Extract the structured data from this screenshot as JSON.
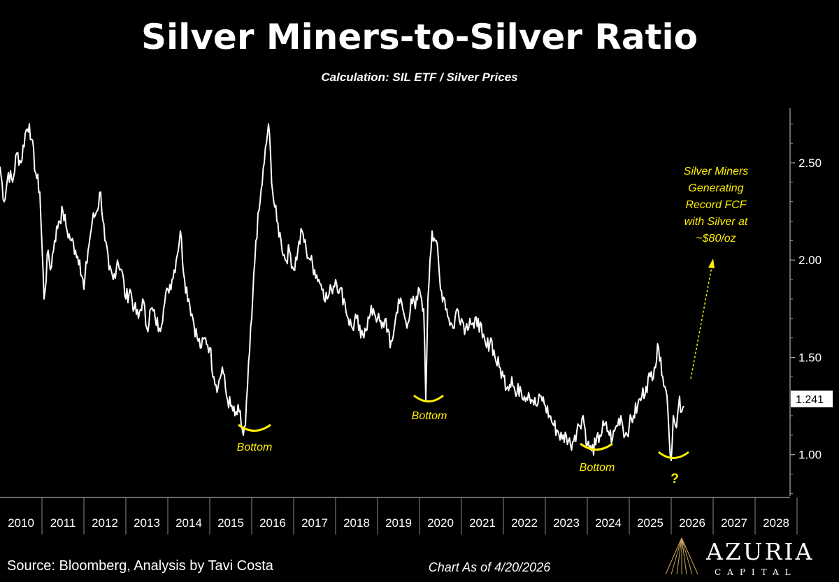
{
  "chart_data": {
    "type": "line",
    "title": "Silver Miners-to-Silver Ratio",
    "subtitle": "Calculation: SIL ETF / Silver Prices",
    "x_ticks": [
      "2010",
      "2011",
      "2012",
      "2013",
      "2014",
      "2015",
      "2016",
      "2017",
      "2018",
      "2019",
      "2020",
      "2021",
      "2022",
      "2023",
      "2024",
      "2025",
      "2026",
      "2027",
      "2028"
    ],
    "xlim": [
      2010.0,
      2029.0
    ],
    "y_ticks": [
      "1.00",
      "1.50",
      "2.00",
      "2.50"
    ],
    "ylim": [
      0.78,
      2.78
    ],
    "last_value_label": "1.241",
    "series": [
      {
        "color": "#ffffff",
        "x": [
          2010.0,
          2010.1,
          2010.2,
          2010.3,
          2010.4,
          2010.5,
          2010.6,
          2010.7,
          2010.75,
          2010.85,
          2010.95,
          2011.05,
          2011.15,
          2011.2,
          2011.3,
          2011.4,
          2011.5,
          2011.6,
          2011.7,
          2011.8,
          2011.9,
          2012.0,
          2012.1,
          2012.2,
          2012.3,
          2012.4,
          2012.5,
          2012.6,
          2012.7,
          2012.8,
          2012.9,
          2013.0,
          2013.1,
          2013.2,
          2013.3,
          2013.4,
          2013.5,
          2013.6,
          2013.7,
          2013.8,
          2013.9,
          2014.0,
          2014.1,
          2014.2,
          2014.3,
          2014.4,
          2014.5,
          2014.6,
          2014.7,
          2014.8,
          2014.9,
          2015.0,
          2015.1,
          2015.2,
          2015.3,
          2015.4,
          2015.5,
          2015.6,
          2015.7,
          2015.8,
          2015.85,
          2015.9,
          2016.0,
          2016.1,
          2016.2,
          2016.3,
          2016.4,
          2016.5,
          2016.6,
          2016.7,
          2016.8,
          2016.9,
          2017.0,
          2017.1,
          2017.2,
          2017.3,
          2017.4,
          2017.5,
          2017.6,
          2017.7,
          2017.8,
          2017.9,
          2018.0,
          2018.1,
          2018.2,
          2018.3,
          2018.4,
          2018.5,
          2018.6,
          2018.7,
          2018.8,
          2018.9,
          2019.0,
          2019.1,
          2019.2,
          2019.3,
          2019.4,
          2019.5,
          2019.6,
          2019.7,
          2019.8,
          2019.9,
          2020.0,
          2020.05,
          2020.1,
          2020.15,
          2020.2,
          2020.25,
          2020.3,
          2020.4,
          2020.5,
          2020.6,
          2020.7,
          2020.8,
          2020.9,
          2021.0,
          2021.1,
          2021.2,
          2021.3,
          2021.4,
          2021.5,
          2021.6,
          2021.7,
          2021.8,
          2021.9,
          2022.0,
          2022.1,
          2022.2,
          2022.3,
          2022.4,
          2022.5,
          2022.6,
          2022.7,
          2022.8,
          2022.9,
          2023.0,
          2023.1,
          2023.2,
          2023.3,
          2023.4,
          2023.5,
          2023.6,
          2023.7,
          2023.8,
          2023.9,
          2024.0,
          2024.1,
          2024.2,
          2024.3,
          2024.4,
          2024.5,
          2024.6,
          2024.7,
          2024.8,
          2024.9,
          2025.0,
          2025.1,
          2025.2,
          2025.3,
          2025.4,
          2025.5,
          2025.6,
          2025.7,
          2025.75,
          2025.8,
          2025.85,
          2025.9,
          2025.95,
          2026.0,
          2026.05,
          2026.1,
          2026.15,
          2026.2,
          2026.25,
          2026.3
        ],
        "y": [
          2.48,
          2.3,
          2.45,
          2.4,
          2.55,
          2.5,
          2.65,
          2.7,
          2.62,
          2.45,
          2.35,
          1.8,
          2.05,
          1.95,
          2.1,
          2.2,
          2.25,
          2.15,
          2.1,
          2.05,
          2.0,
          1.85,
          2.05,
          2.2,
          2.25,
          2.35,
          2.1,
          1.95,
          1.9,
          2.0,
          1.95,
          1.8,
          1.85,
          1.75,
          1.7,
          1.8,
          1.65,
          1.75,
          1.7,
          1.65,
          1.75,
          1.85,
          1.9,
          2.0,
          2.15,
          1.9,
          1.8,
          1.7,
          1.6,
          1.55,
          1.6,
          1.55,
          1.4,
          1.35,
          1.45,
          1.3,
          1.25,
          1.2,
          1.22,
          1.1,
          1.15,
          1.35,
          1.7,
          2.1,
          2.3,
          2.5,
          2.7,
          2.35,
          2.2,
          2.1,
          2.0,
          2.05,
          1.95,
          2.05,
          2.15,
          2.05,
          2.0,
          1.95,
          1.9,
          1.85,
          1.8,
          1.85,
          1.9,
          1.85,
          1.8,
          1.7,
          1.65,
          1.7,
          1.6,
          1.65,
          1.7,
          1.75,
          1.7,
          1.65,
          1.7,
          1.55,
          1.65,
          1.8,
          1.75,
          1.65,
          1.8,
          1.75,
          1.85,
          1.8,
          1.75,
          1.28,
          1.8,
          2.0,
          2.15,
          2.1,
          1.85,
          1.8,
          1.7,
          1.65,
          1.75,
          1.7,
          1.65,
          1.7,
          1.65,
          1.7,
          1.6,
          1.55,
          1.6,
          1.5,
          1.45,
          1.4,
          1.35,
          1.4,
          1.3,
          1.35,
          1.3,
          1.32,
          1.28,
          1.25,
          1.3,
          1.25,
          1.2,
          1.15,
          1.12,
          1.08,
          1.1,
          1.05,
          1.1,
          1.15,
          1.2,
          1.05,
          1.02,
          1.05,
          1.1,
          1.15,
          1.12,
          1.08,
          1.15,
          1.2,
          1.1,
          1.15,
          1.2,
          1.25,
          1.3,
          1.35,
          1.4,
          1.45,
          1.55,
          1.5,
          1.4,
          1.35,
          1.3,
          1.1,
          0.97,
          1.2,
          1.15,
          1.2,
          1.3,
          1.22,
          1.25
        ]
      }
    ]
  },
  "annotations": {
    "bottom_2015": "Bottom",
    "bottom_2020": "Bottom",
    "bottom_2024": "Bottom",
    "question": "?",
    "fcf_line1": "Silver Miners",
    "fcf_line2": "Generating",
    "fcf_line3": "Record FCF",
    "fcf_line4": "with Silver at",
    "fcf_line5": "~$80/oz"
  },
  "footer": {
    "source": "Source: Bloomberg, Analysis by Tavi Costa",
    "as_of": "Chart As of 4/20/2026"
  },
  "brand": {
    "name": "AZURIA",
    "tagline": "CAPITAL"
  },
  "colors": {
    "background": "#000000",
    "line": "#ffffff",
    "annotation": "#ffef00"
  }
}
